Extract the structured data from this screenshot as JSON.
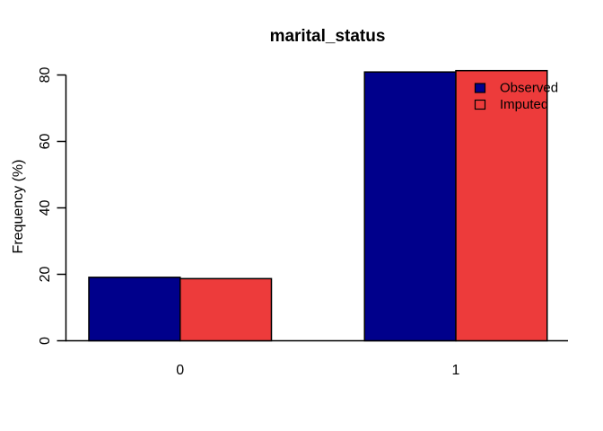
{
  "chart_data": {
    "type": "bar",
    "title": "marital_status",
    "xlabel": "",
    "ylabel": "Frequency (%)",
    "categories": [
      "0",
      "1"
    ],
    "series": [
      {
        "name": "Observed",
        "values": [
          19.1,
          80.9
        ],
        "color": "#00008B"
      },
      {
        "name": "Imputed",
        "values": [
          18.7,
          81.3
        ],
        "color": "#ED3B3B"
      }
    ],
    "ylim": [
      0,
      80
    ],
    "yticks": [
      "0",
      "20",
      "40",
      "60",
      "80"
    ],
    "grid": false,
    "legend_position": "top-right-inside",
    "legend_swatch_border": "#000000",
    "imputed_swatch_fill": "none",
    "bar_border_color": "#000000",
    "axis_color": "#000000",
    "background": "#FFFFFF"
  }
}
